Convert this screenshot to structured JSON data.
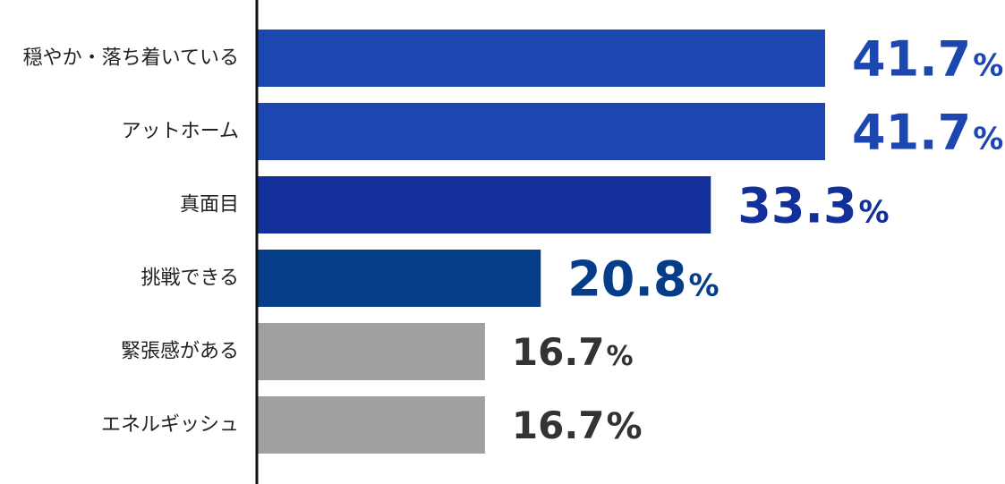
{
  "chart_data": {
    "type": "bar",
    "orientation": "horizontal",
    "title": "",
    "xlabel": "",
    "ylabel": "",
    "xlim": [
      0,
      50
    ],
    "grid": false,
    "legend": "none",
    "unit": "%",
    "categories": [
      "穏やか・落ち着いている",
      "アットホーム",
      "真面目",
      "挑戦できる",
      "緊張感がある",
      "エネルギッシュ"
    ],
    "values": [
      41.7,
      41.7,
      33.3,
      20.8,
      16.7,
      16.7
    ],
    "value_labels": [
      "41.7",
      "41.7",
      "33.3",
      "20.8",
      "16.7",
      "16.7"
    ],
    "bar_colors": [
      "#1c46b0",
      "#1c46b0",
      "#132f9a",
      "#063d88",
      "#a0a0a0",
      "#a0a0a0"
    ],
    "label_colors": [
      "#1c46b0",
      "#1c46b0",
      "#132f9a",
      "#063d88",
      "#333333",
      "#333333"
    ],
    "axis_color": "#111111"
  }
}
